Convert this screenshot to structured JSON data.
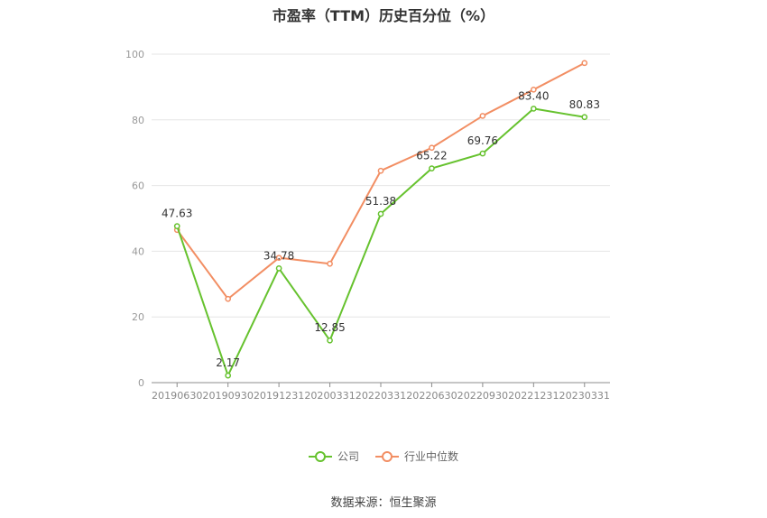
{
  "chart_data": {
    "type": "line",
    "title": "市盈率（TTM）历史百分位（%）",
    "categories": [
      "20190630",
      "20190930",
      "20191231",
      "20200331",
      "20220331",
      "20220630",
      "20220930",
      "20221231",
      "20230331"
    ],
    "ylim": [
      0,
      100
    ],
    "yticks": [
      0,
      20,
      40,
      60,
      80,
      100
    ],
    "grid": true,
    "legend_position": "bottom",
    "series": [
      {
        "name": "公司",
        "color": "#66c22e",
        "values": [
          47.63,
          2.17,
          34.78,
          12.85,
          51.38,
          65.22,
          69.76,
          83.4,
          80.83
        ],
        "labels": [
          "47.63",
          "2.17",
          "34.78",
          "12.85",
          "51.38",
          "65.22",
          "69.76",
          "83.40",
          "80.83"
        ]
      },
      {
        "name": "行业中位数",
        "color": "#f28e63",
        "values": [
          46.5,
          25.5,
          38.0,
          36.2,
          64.5,
          71.5,
          81.2,
          89.2,
          97.3
        ]
      }
    ]
  },
  "source": "数据来源：恒生聚源"
}
